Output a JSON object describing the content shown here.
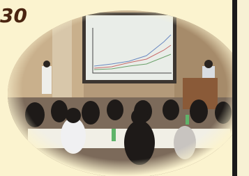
{
  "label": "30"
}
